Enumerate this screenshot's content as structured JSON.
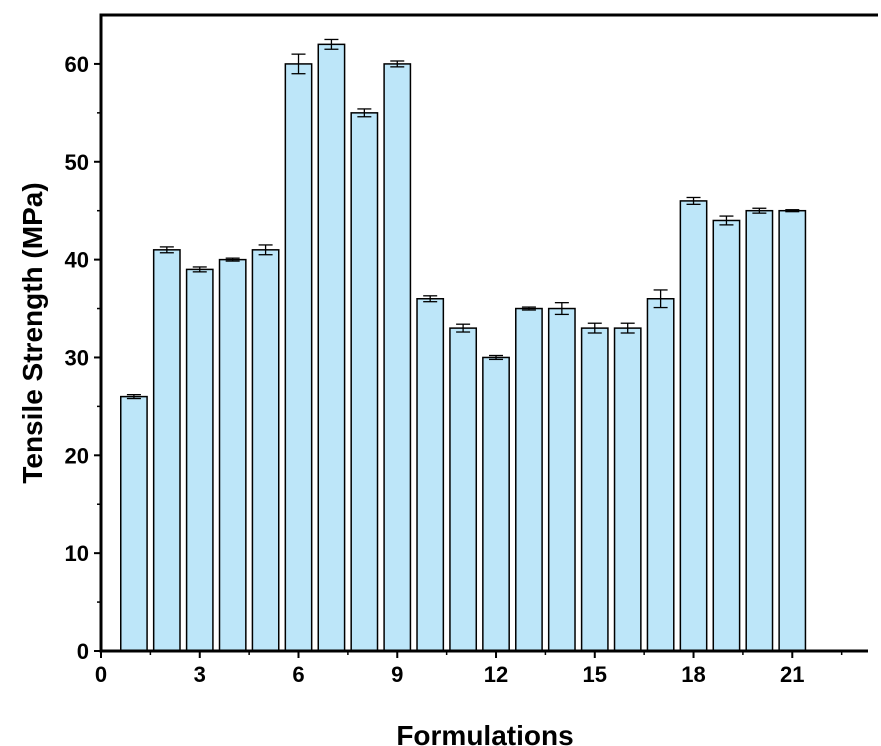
{
  "chart_data": {
    "type": "bar",
    "title": "",
    "xlabel": "Formulations",
    "ylabel": "Tensile Strength (MPa)",
    "xlim": [
      0,
      23.3
    ],
    "ylim": [
      0,
      65
    ],
    "x_ticks": [
      0,
      3,
      6,
      9,
      12,
      15,
      18,
      21
    ],
    "y_ticks": [
      0,
      10,
      20,
      30,
      40,
      50,
      60
    ],
    "grid": false,
    "legend": "none",
    "bar_color": "#bde6f9",
    "bar_edge_color": "#000000",
    "x": [
      1,
      2,
      3,
      4,
      5,
      6,
      7,
      8,
      9,
      10,
      11,
      12,
      13,
      14,
      15,
      16,
      17,
      18,
      19,
      20,
      21
    ],
    "values": [
      26,
      41,
      39,
      40,
      41,
      60,
      62,
      55,
      60,
      36,
      33,
      30,
      35,
      35,
      33,
      33,
      36,
      46,
      44,
      45,
      45
    ],
    "errors": [
      0.2,
      0.3,
      0.25,
      0.15,
      0.5,
      1.0,
      0.5,
      0.4,
      0.3,
      0.3,
      0.4,
      0.2,
      0.15,
      0.6,
      0.5,
      0.5,
      0.9,
      0.35,
      0.45,
      0.25,
      0.1
    ]
  }
}
